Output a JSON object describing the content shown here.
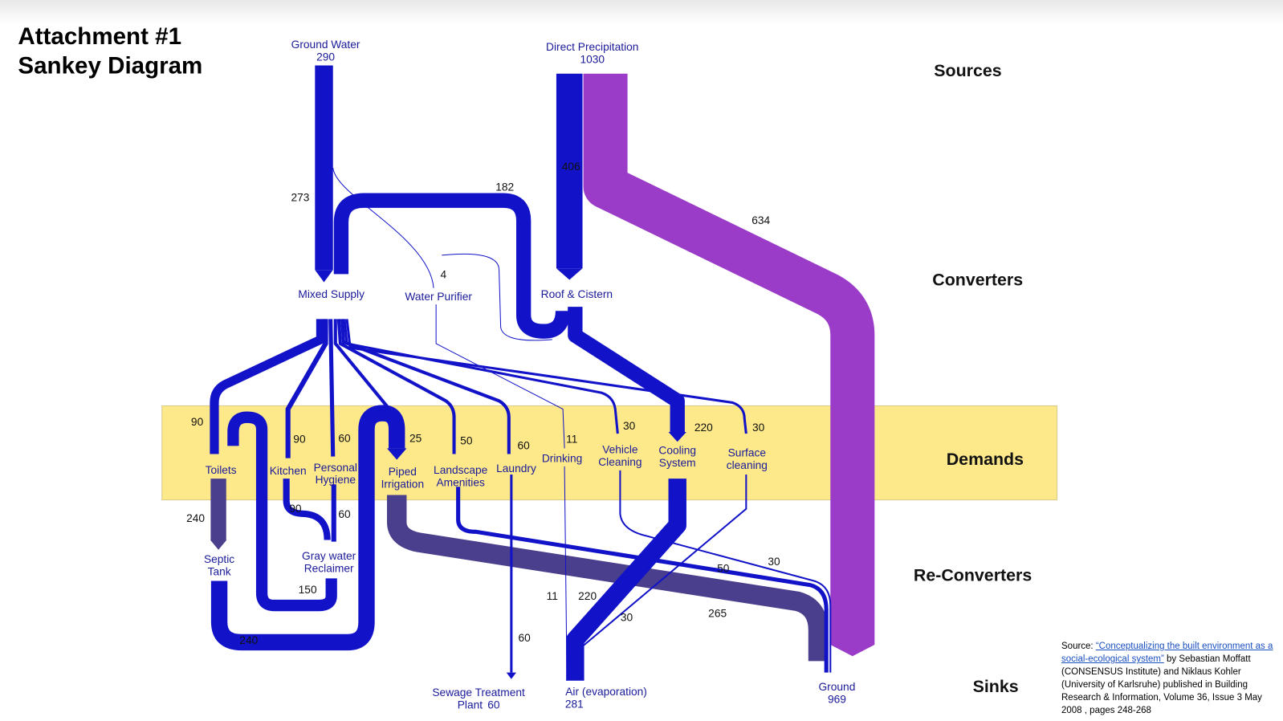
{
  "header": {
    "title": [
      "Attachment  #1",
      "Sankey Diagram"
    ]
  },
  "levels": [
    "Sources",
    "Converters",
    "Demands",
    "Re-Converters",
    "Sinks"
  ],
  "nodes": [
    {
      "label": [
        "Ground Water"
      ],
      "value": 290
    },
    {
      "label": [
        "Direct Precipitation"
      ],
      "value": 1030
    },
    {
      "label": [
        "Mixed Supply"
      ]
    },
    {
      "label": [
        "Water Purifier"
      ]
    },
    {
      "label": [
        "Roof & Cistern"
      ]
    },
    {
      "label": [
        "Toilets"
      ]
    },
    {
      "label": [
        "Kitchen"
      ]
    },
    {
      "label": [
        "Personal",
        "Hygiene"
      ]
    },
    {
      "label": [
        "Piped",
        "Irrigation"
      ]
    },
    {
      "label": [
        "Landscape",
        "Amenities"
      ]
    },
    {
      "label": [
        "Laundry"
      ]
    },
    {
      "label": [
        "Drinking"
      ]
    },
    {
      "label": [
        "Vehicle",
        "Cleaning"
      ]
    },
    {
      "label": [
        "Cooling",
        "System"
      ]
    },
    {
      "label": [
        "Surface",
        "cleaning"
      ]
    },
    {
      "label": [
        "Septic",
        "Tank"
      ]
    },
    {
      "label": [
        "Gray water",
        "Reclaimer"
      ]
    },
    {
      "label": [
        "Sewage Treatment",
        "Plant"
      ],
      "value": 60
    },
    {
      "label": [
        "Air (evaporation)"
      ],
      "value": 281
    },
    {
      "label": [
        "Ground"
      ],
      "value": 969
    }
  ],
  "flows": [
    273,
    182,
    4,
    406,
    634,
    90,
    90,
    60,
    25,
    50,
    60,
    11,
    30,
    220,
    30,
    240,
    90,
    60,
    150,
    240,
    50,
    30,
    265,
    11,
    220,
    30,
    60
  ],
  "source": {
    "prefix": "Source: ",
    "link": "“Conceptualizing the built environment as a social-ecological system”",
    "rest": " by Sebastian Moffatt (CONSENSUS Institute) and Niklaus Kohler (University of Karlsruhe) published in Building Research & Information, Volume 36, Issue 3 May 2008 , pages 248-268"
  }
}
